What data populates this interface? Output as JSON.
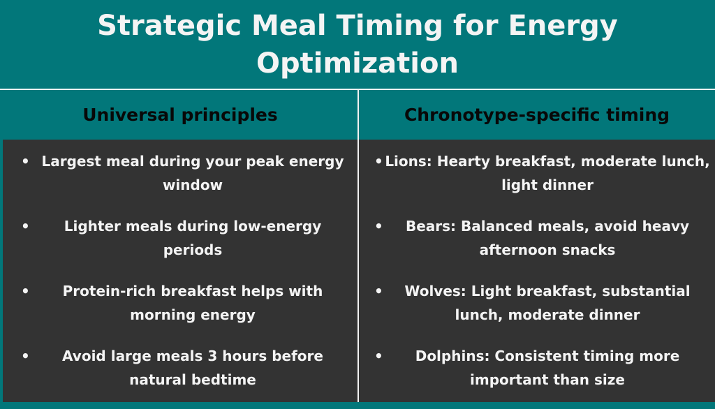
{
  "title": "Strategic Meal Timing for Energy Optimization",
  "colors": {
    "header_bg": "#02777a",
    "body_bg": "#333333",
    "text_light": "#f4f4f4",
    "text_dark": "#080808",
    "divider": "#f2f2f2"
  },
  "columns": [
    {
      "heading": "Universal principles",
      "items": [
        "Largest meal during your peak energy window",
        "Lighter meals during low-energy periods",
        "Protein-rich breakfast helps with morning energy",
        "Avoid large meals 3 hours before natural bedtime"
      ]
    },
    {
      "heading": "Chronotype-specific timing",
      "items": [
        "Lions: Hearty breakfast, moderate lunch, light dinner",
        "Bears: Balanced meals, avoid heavy afternoon snacks",
        "Wolves: Light breakfast, substantial lunch, moderate dinner",
        "Dolphins: Consistent timing more important than size"
      ]
    }
  ],
  "bullet": "•"
}
